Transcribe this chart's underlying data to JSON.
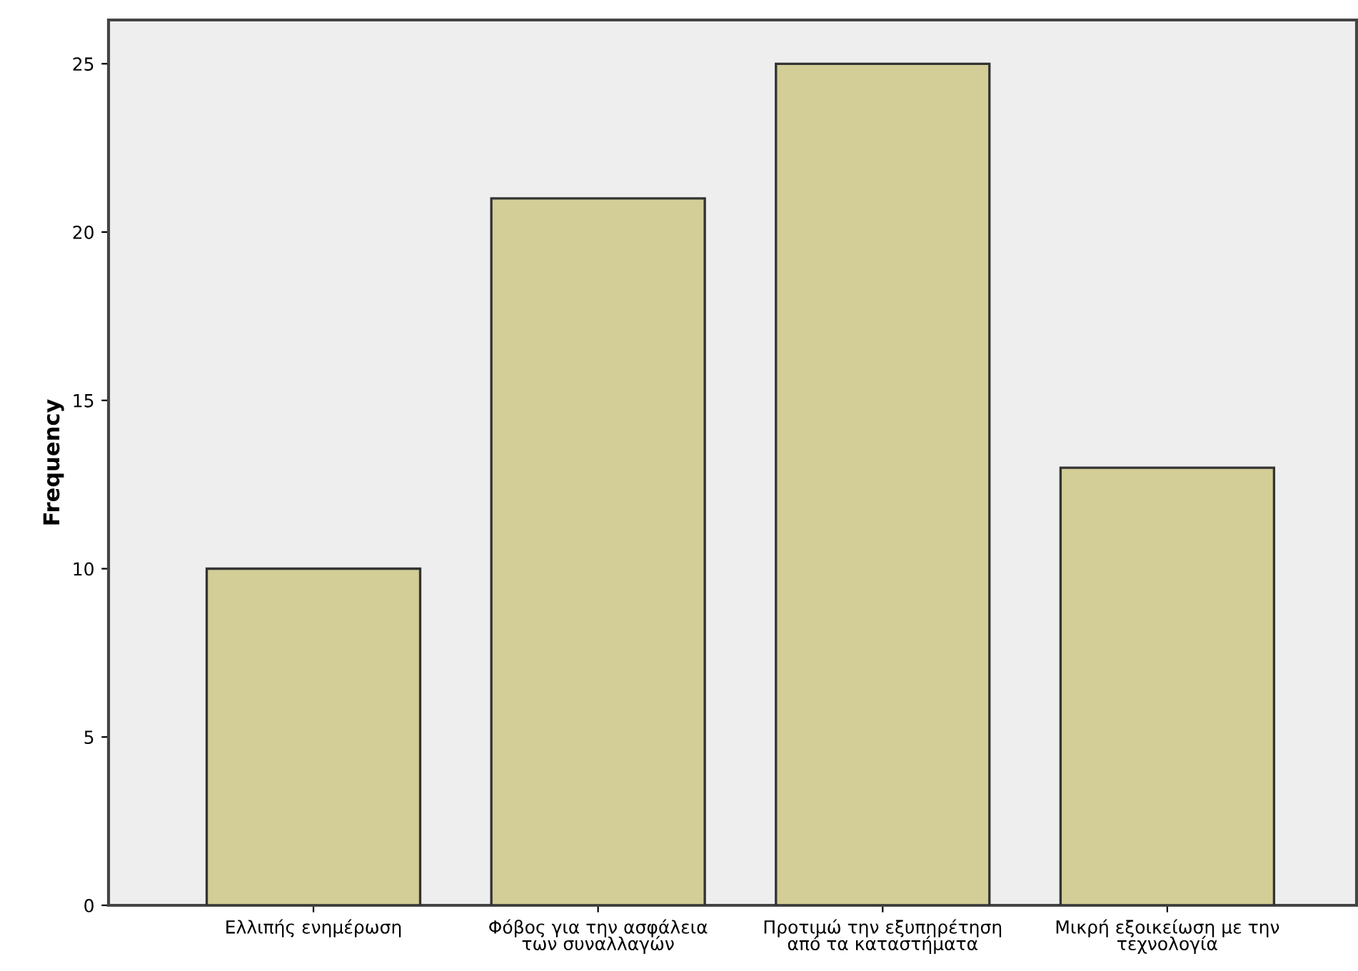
{
  "chart_data": {
    "type": "bar",
    "ylabel": "Frequency",
    "categories": [
      "Ελλιπής ενημέρωση",
      "Φόβος για την ασφάλεια\nτων συναλλαγών",
      "Προτιμώ την εξυπηρέτηση\nαπό τα καταστήματα",
      "Μικρή εξοικείωση με την\nτεχνολογία"
    ],
    "values": [
      10,
      21,
      25,
      13
    ],
    "color": "#d3ce97",
    "ylim": [
      0,
      26.3
    ],
    "yticks": [
      0,
      5,
      10,
      15,
      20,
      25
    ],
    "grid": false
  }
}
